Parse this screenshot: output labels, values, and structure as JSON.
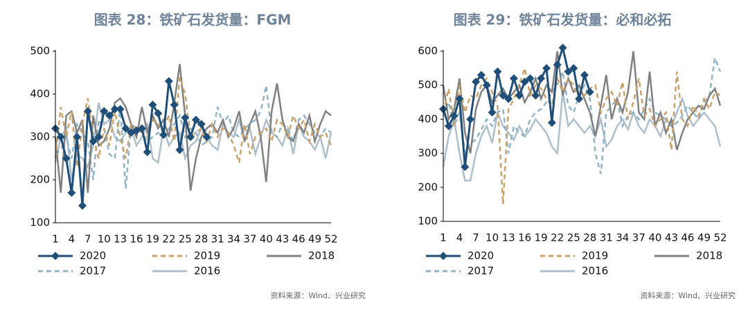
{
  "chart_data": [
    {
      "type": "line",
      "title": "图表 28：铁矿石发货量：FGM",
      "x": [
        1,
        2,
        3,
        4,
        5,
        6,
        7,
        8,
        9,
        10,
        11,
        12,
        13,
        14,
        15,
        16,
        17,
        18,
        19,
        20,
        21,
        22,
        23,
        24,
        25,
        26,
        27,
        28,
        29,
        30,
        31,
        32,
        33,
        34,
        35,
        36,
        37,
        38,
        39,
        40,
        41,
        42,
        43,
        44,
        45,
        46,
        47,
        48,
        49,
        50,
        51,
        52
      ],
      "xlim": [
        1,
        52
      ],
      "xticks": [
        1,
        4,
        7,
        10,
        13,
        16,
        19,
        22,
        25,
        28,
        31,
        34,
        37,
        40,
        43,
        46,
        49,
        52
      ],
      "ylim": [
        100,
        500
      ],
      "yticks": [
        100,
        200,
        300,
        400,
        500
      ],
      "series": [
        {
          "name": "2020",
          "color": "#1f4e79",
          "style": "solid",
          "marker": "diamond",
          "values": [
            320,
            300,
            250,
            170,
            300,
            140,
            360,
            290,
            300,
            360,
            350,
            365,
            365,
            320,
            310,
            315,
            320,
            265,
            375,
            355,
            305,
            430,
            375,
            270,
            345,
            300,
            340,
            330,
            300,
            null,
            null,
            null,
            null,
            null,
            null,
            null,
            null,
            null,
            null,
            null,
            null,
            null,
            null,
            null,
            null,
            null,
            null,
            null,
            null,
            null,
            null,
            null
          ]
        },
        {
          "name": "2019",
          "color": "#c9a26b",
          "style": "dashed",
          "values": [
            250,
            370,
            300,
            360,
            230,
            330,
            390,
            300,
            250,
            320,
            280,
            360,
            300,
            250,
            330,
            320,
            310,
            300,
            340,
            330,
            320,
            350,
            290,
            440,
            400,
            300,
            310,
            320,
            290,
            330,
            300,
            320,
            310,
            280,
            240,
            330,
            260,
            300,
            310,
            320,
            290,
            340,
            330,
            300,
            350,
            320,
            340,
            290,
            330,
            300,
            310,
            280
          ]
        },
        {
          "name": "2018",
          "color": "#808080",
          "style": "solid",
          "values": [
            300,
            170,
            350,
            360,
            310,
            340,
            170,
            350,
            280,
            290,
            320,
            380,
            390,
            370,
            330,
            300,
            370,
            310,
            350,
            320,
            340,
            300,
            380,
            470,
            350,
            175,
            250,
            300,
            320,
            330,
            310,
            340,
            300,
            320,
            360,
            290,
            330,
            360,
            300,
            195,
            360,
            425,
            340,
            300,
            290,
            330,
            310,
            350,
            290,
            330,
            360,
            350
          ]
        },
        {
          "name": "2017",
          "color": "#8fb4c8",
          "style": "dashed",
          "values": [
            260,
            270,
            300,
            250,
            330,
            310,
            290,
            200,
            340,
            320,
            260,
            250,
            370,
            180,
            330,
            320,
            310,
            290,
            300,
            310,
            300,
            320,
            330,
            350,
            300,
            320,
            310,
            280,
            290,
            300,
            370,
            330,
            350,
            310,
            300,
            320,
            330,
            340,
            360,
            420,
            310,
            300,
            330,
            320,
            290,
            340,
            350,
            330,
            310,
            300,
            320,
            310
          ]
        },
        {
          "name": "2016",
          "color": "#aebfcc",
          "style": "solid",
          "values": [
            240,
            300,
            320,
            200,
            260,
            250,
            230,
            280,
            380,
            330,
            340,
            300,
            290,
            310,
            320,
            280,
            300,
            330,
            250,
            240,
            320,
            280,
            300,
            310,
            250,
            280,
            290,
            320,
            300,
            280,
            270,
            330,
            310,
            300,
            340,
            290,
            320,
            260,
            300,
            340,
            310,
            300,
            280,
            320,
            260,
            330,
            300,
            290,
            270,
            300,
            250,
            310
          ]
        }
      ],
      "source": "资料来源：Wind、兴业研究"
    },
    {
      "type": "line",
      "title": "图表 29：铁矿石发货量：必和必拓",
      "x": [
        1,
        2,
        3,
        4,
        5,
        6,
        7,
        8,
        9,
        10,
        11,
        12,
        13,
        14,
        15,
        16,
        17,
        18,
        19,
        20,
        21,
        22,
        23,
        24,
        25,
        26,
        27,
        28,
        29,
        30,
        31,
        32,
        33,
        34,
        35,
        36,
        37,
        38,
        39,
        40,
        41,
        42,
        43,
        44,
        45,
        46,
        47,
        48,
        49,
        50,
        51,
        52
      ],
      "xlim": [
        1,
        52
      ],
      "xticks": [
        1,
        4,
        7,
        10,
        13,
        16,
        19,
        22,
        25,
        28,
        31,
        34,
        37,
        40,
        43,
        46,
        49,
        52
      ],
      "ylim": [
        100,
        600
      ],
      "yticks": [
        100,
        200,
        300,
        400,
        500,
        600
      ],
      "series": [
        {
          "name": "2020",
          "color": "#1f4e79",
          "style": "solid",
          "marker": "diamond",
          "values": [
            430,
            380,
            410,
            460,
            260,
            400,
            510,
            530,
            500,
            420,
            540,
            470,
            460,
            520,
            470,
            510,
            520,
            470,
            520,
            550,
            390,
            560,
            610,
            540,
            550,
            460,
            530,
            480,
            null,
            null,
            null,
            null,
            null,
            null,
            null,
            null,
            null,
            null,
            null,
            null,
            null,
            null,
            null,
            null,
            null,
            null,
            null,
            null,
            null,
            null,
            null,
            null
          ]
        },
        {
          "name": "2019",
          "color": "#c9a26b",
          "style": "dashed",
          "values": [
            420,
            490,
            380,
            500,
            420,
            470,
            460,
            500,
            520,
            480,
            440,
            150,
            430,
            460,
            500,
            550,
            470,
            500,
            490,
            460,
            440,
            520,
            480,
            520,
            500,
            460,
            470,
            490,
            500,
            420,
            460,
            480,
            440,
            510,
            400,
            450,
            520,
            410,
            430,
            380,
            400,
            420,
            310,
            540,
            400,
            380,
            440,
            410,
            460,
            430,
            480,
            470
          ]
        },
        {
          "name": "2018",
          "color": "#808080",
          "style": "solid",
          "values": [
            500,
            400,
            430,
            520,
            360,
            300,
            430,
            480,
            500,
            450,
            470,
            490,
            460,
            480,
            500,
            450,
            480,
            520,
            460,
            500,
            480,
            600,
            470,
            520,
            480,
            500,
            460,
            420,
            350,
            440,
            530,
            400,
            460,
            420,
            480,
            600,
            420,
            400,
            540,
            380,
            420,
            360,
            400,
            310,
            360,
            400,
            420,
            440,
            430,
            470,
            490,
            440
          ]
        },
        {
          "name": "2017",
          "color": "#8fb4c8",
          "style": "dashed",
          "values": [
            410,
            450,
            380,
            420,
            300,
            330,
            340,
            370,
            400,
            380,
            420,
            430,
            300,
            380,
            360,
            350,
            400,
            420,
            430,
            450,
            480,
            500,
            540,
            440,
            420,
            470,
            500,
            460,
            300,
            240,
            420,
            440,
            460,
            380,
            410,
            420,
            400,
            430,
            460,
            420,
            410,
            400,
            380,
            390,
            410,
            440,
            420,
            400,
            450,
            470,
            580,
            540
          ]
        },
        {
          "name": "2016",
          "color": "#aebfcc",
          "style": "solid",
          "values": [
            260,
            350,
            400,
            300,
            220,
            220,
            300,
            350,
            380,
            330,
            420,
            380,
            360,
            340,
            380,
            350,
            370,
            400,
            380,
            360,
            320,
            300,
            480,
            380,
            400,
            380,
            360,
            380,
            350,
            400,
            320,
            340,
            380,
            400,
            370,
            420,
            380,
            360,
            400,
            380,
            350,
            400,
            380,
            420,
            460,
            410,
            380,
            400,
            420,
            400,
            380,
            320
          ]
        }
      ],
      "source": "资料来源：Wind、兴业研究"
    }
  ]
}
